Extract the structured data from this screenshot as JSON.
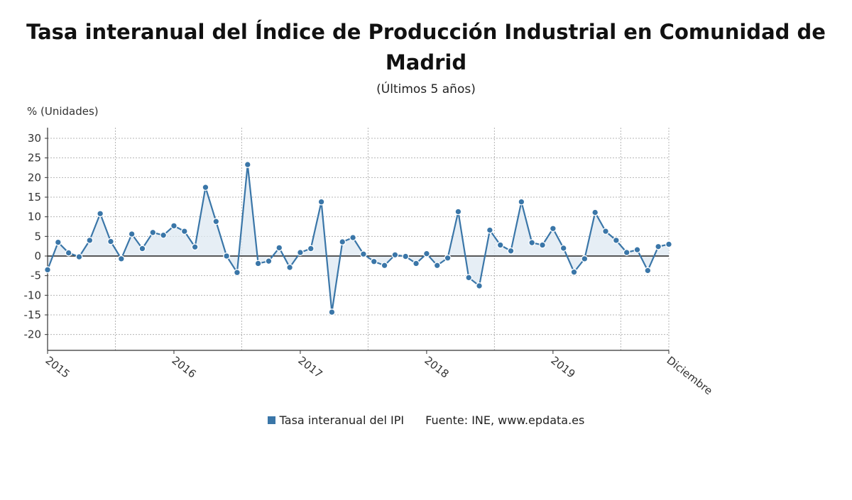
{
  "chart_data": {
    "type": "line",
    "title": "Tasa interanual del Índice de Producción Industrial en Comunidad de Madrid",
    "subtitle": "(Últimos 5 años)",
    "ylabel": "% (Unidades)",
    "ylim": [
      -24,
      33
    ],
    "yticks": [
      -20,
      -15,
      -10,
      -5,
      0,
      5,
      10,
      15,
      20,
      25,
      30
    ],
    "x_tick_labels": [
      "2015",
      "2016",
      "2017",
      "2018",
      "2019",
      "Diciembre"
    ],
    "grid": true,
    "colors": {
      "series": "#3a76a8",
      "fill": "#dde8f1"
    },
    "series": [
      {
        "name": "Tasa interanual del IPI",
        "values": [
          -3.5,
          3.5,
          0.8,
          -0.2,
          4.0,
          10.8,
          3.7,
          -0.7,
          5.6,
          1.9,
          6.0,
          5.3,
          7.7,
          6.3,
          2.3,
          17.5,
          8.8,
          0.0,
          -4.2,
          23.3,
          -1.9,
          -1.3,
          2.1,
          -2.9,
          0.9,
          1.9,
          13.8,
          -14.3,
          3.6,
          4.7,
          0.5,
          -1.4,
          -2.4,
          0.3,
          -0.1,
          -1.9,
          0.6,
          -2.4,
          -0.5,
          11.3,
          -5.5,
          -7.6,
          6.6,
          2.8,
          1.3,
          13.8,
          3.4,
          2.8,
          7.0,
          2.0,
          -4.1,
          -0.7,
          11.1,
          6.3,
          4.0,
          0.9,
          1.6,
          -3.7,
          2.4,
          3.0
        ]
      }
    ],
    "legend_position": "bottom"
  },
  "source_text": "Fuente: INE, www.epdata.es"
}
